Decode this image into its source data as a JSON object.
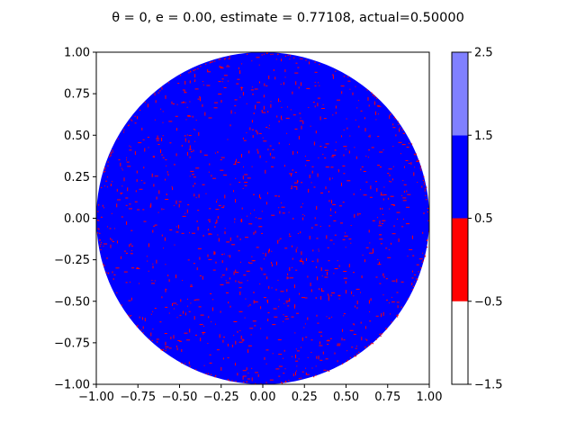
{
  "chart_data": {
    "type": "heatmap",
    "title": "θ = 0, e = 0.00, estimate = 0.77108, actual=0.50000",
    "xlabel": "",
    "ylabel": "",
    "xlim": [
      -1.0,
      1.0
    ],
    "ylim": [
      -1.0,
      1.0
    ],
    "x_ticks": [
      "−1.00",
      "−0.75",
      "−0.50",
      "−0.25",
      "0.00",
      "0.25",
      "0.50",
      "0.75",
      "1.00"
    ],
    "y_ticks": [
      "1.00",
      "0.75",
      "0.50",
      "0.25",
      "0.00",
      "−0.25",
      "−0.50",
      "−0.75",
      "−1.00"
    ],
    "x_tick_values": [
      -1.0,
      -0.75,
      -0.5,
      -0.25,
      0.0,
      0.25,
      0.5,
      0.75,
      1.0
    ],
    "y_tick_values": [
      1.0,
      0.75,
      0.5,
      0.25,
      0.0,
      -0.25,
      -0.5,
      -0.75,
      -1.0
    ],
    "grid": false,
    "region": {
      "shape": "unit-disk",
      "dominant_value": 1,
      "dominant_color": "#0000ff",
      "scattered_value": 0,
      "scattered_color": "#ff0000",
      "scattered_fraction": 0.04,
      "outside_value": -1,
      "outside_color": "#ffffff"
    },
    "colorbar": {
      "placement": "right",
      "levels": [
        -1.5,
        -0.5,
        0.5,
        1.5,
        2.5
      ],
      "colors": [
        "#ffffff",
        "#ff0000",
        "#0000ff",
        "#8080ff"
      ],
      "tick_labels": [
        "−1.5",
        "−0.5",
        "0.5",
        "1.5",
        "2.5"
      ]
    }
  }
}
